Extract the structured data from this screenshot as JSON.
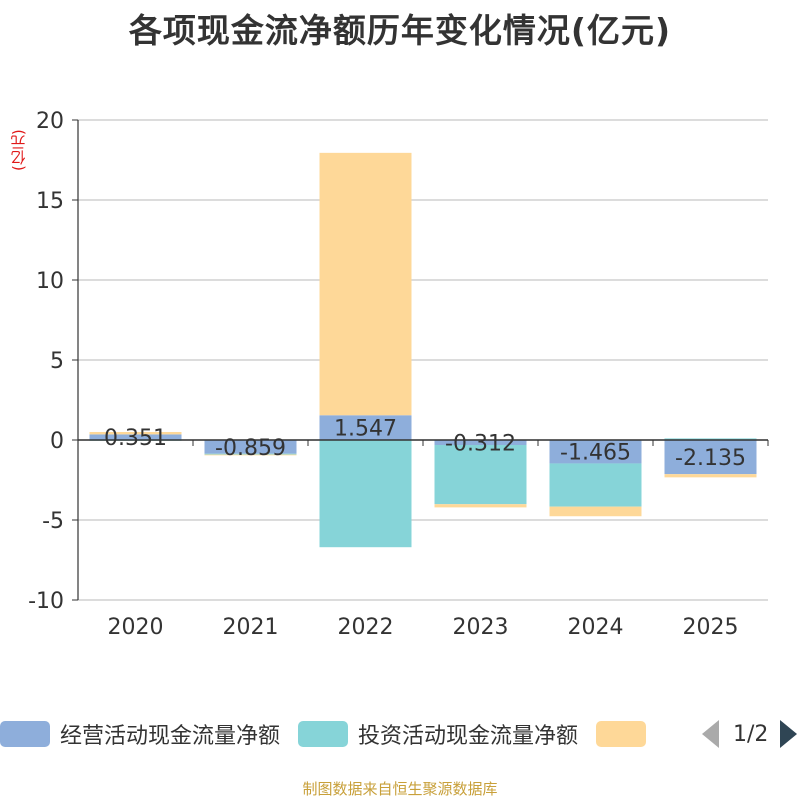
{
  "title": "各项现金流净额历年变化情况(亿元)",
  "unit_label": "(亿元)",
  "source": "制图数据来自恒生聚源数据库",
  "legend": {
    "items": [
      {
        "label": "经营活动现金流量净额",
        "color": "#8eaedb"
      },
      {
        "label": "投资活动现金流量净额",
        "color": "#86d4d8"
      },
      {
        "label": "",
        "color": "#fed898"
      }
    ],
    "page": "1/2"
  },
  "chart_data": {
    "type": "bar",
    "stacked": true,
    "title": "各项现金流净额历年变化情况(亿元)",
    "ylabel": "(亿元)",
    "xlabel": "",
    "ylim": [
      -10,
      20
    ],
    "yticks": [
      20,
      15,
      10,
      5,
      0,
      -5,
      -10
    ],
    "grid": true,
    "categories": [
      "2020",
      "2021",
      "2022",
      "2023",
      "2024",
      "2025"
    ],
    "series": [
      {
        "name": "经营活动现金流量净额",
        "color": "#8eaedb",
        "values": [
          0.351,
          -0.859,
          1.547,
          -0.312,
          -1.465,
          -2.135
        ]
      },
      {
        "name": "投资活动现金流量净额",
        "color": "#86d4d8",
        "values": [
          -0.05,
          -0.05,
          -6.7,
          -3.7,
          -2.7,
          0.1
        ]
      },
      {
        "name": "",
        "color": "#fed898",
        "values": [
          0.15,
          -0.05,
          16.4,
          -0.2,
          -0.6,
          -0.2
        ]
      }
    ],
    "data_labels": [
      "0.351",
      "-0.859",
      "1.547",
      "-0.312",
      "-1.465",
      "-2.135"
    ]
  }
}
